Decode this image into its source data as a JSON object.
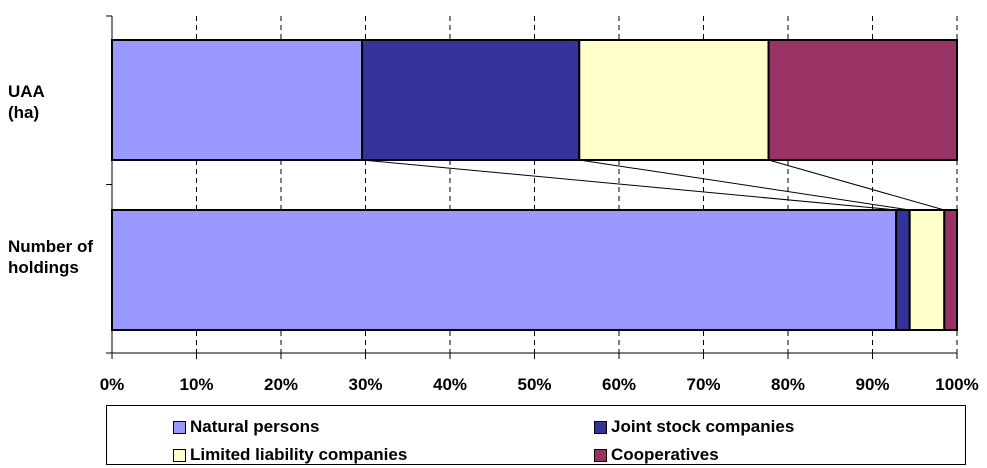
{
  "chart_data": {
    "type": "bar",
    "orientation": "horizontal",
    "stacked": "percent",
    "categories": [
      "UAA\n(ha)",
      "Number of\nholdings"
    ],
    "series": [
      {
        "name": "Natural persons",
        "color": "#9999FF",
        "values": [
          29.6,
          92.8
        ]
      },
      {
        "name": "Joint stock companies",
        "color": "#333399",
        "values": [
          25.7,
          1.6
        ]
      },
      {
        "name": "Limited liability companies",
        "color": "#FFFFCC",
        "values": [
          22.4,
          4.1
        ]
      },
      {
        "name": "Cooperatives",
        "color": "#993366",
        "values": [
          22.3,
          1.5
        ]
      }
    ],
    "x_ticks": [
      "0%",
      "10%",
      "20%",
      "30%",
      "40%",
      "50%",
      "60%",
      "70%",
      "80%",
      "90%",
      "100%"
    ],
    "xlim": [
      0,
      100
    ],
    "grid": "vertical dashed",
    "legend_position": "bottom",
    "title": "",
    "xlabel": "",
    "ylabel": ""
  }
}
